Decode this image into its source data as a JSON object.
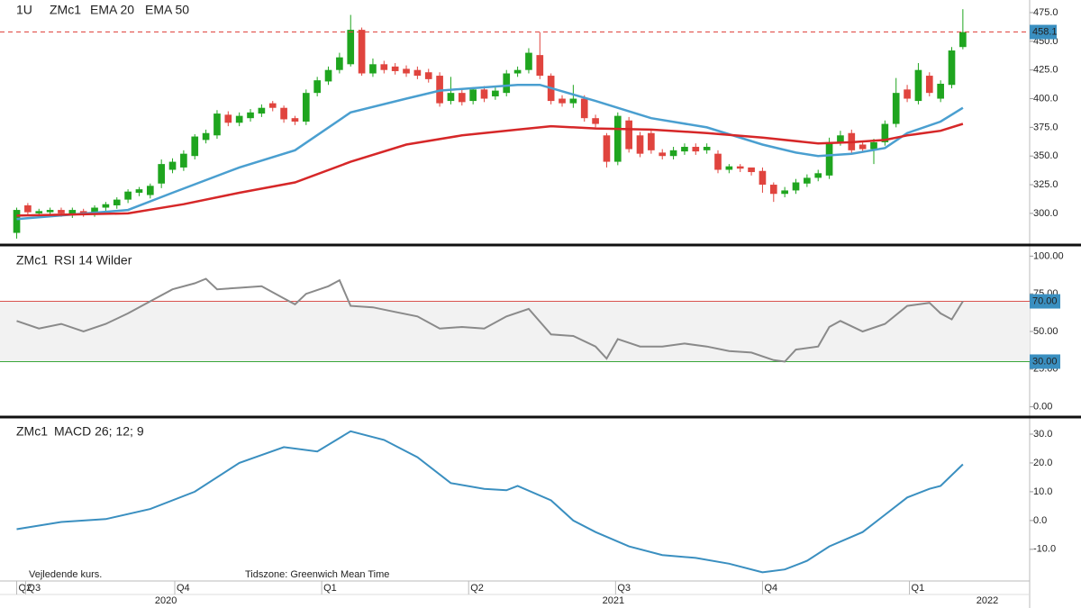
{
  "chart_data": [
    {
      "type": "candlestick",
      "interval": "1U",
      "title": "ZMc1",
      "up_color": "#1fa51f",
      "down_color": "#e0443e",
      "xlim": [
        -1.5,
        91
      ],
      "ylim": [
        274,
        486
      ],
      "yticks": [
        {
          "value": 300,
          "label": "300.0"
        },
        {
          "value": 325,
          "label": "325.0"
        },
        {
          "value": 350,
          "label": "350.0"
        },
        {
          "value": 375,
          "label": "375.0"
        },
        {
          "value": 400,
          "label": "400.0"
        },
        {
          "value": 425,
          "label": "425.0"
        },
        {
          "value": 450,
          "label": "450.0"
        },
        {
          "value": 475,
          "label": "475.0"
        }
      ],
      "open": [
        283,
        307,
        300,
        301,
        303,
        299,
        302,
        300,
        305,
        307,
        312,
        318,
        316,
        326,
        338,
        340,
        350,
        364,
        368,
        386,
        379,
        383,
        387,
        396,
        392,
        383,
        380,
        405,
        415,
        425,
        430,
        460,
        422,
        430,
        428,
        426,
        425,
        423,
        420,
        398,
        405,
        398,
        408,
        402,
        405,
        422,
        425,
        438,
        420,
        400,
        396,
        400,
        383,
        368,
        345,
        381,
        368,
        370,
        353,
        350,
        354,
        358,
        355,
        352,
        338,
        341,
        340,
        337,
        325,
        317,
        320,
        326,
        331,
        333,
        362,
        370,
        360,
        356,
        362,
        378,
        408,
        398,
        420,
        400,
        412,
        445
      ],
      "close": [
        303,
        301,
        302,
        303,
        300,
        303,
        300,
        305,
        308,
        312,
        319,
        321,
        324,
        343,
        345,
        352,
        367,
        370,
        387,
        379,
        385,
        388,
        392,
        392,
        382,
        380,
        405,
        416,
        425,
        436,
        460,
        422,
        430,
        425,
        424,
        422,
        420,
        417,
        396,
        405,
        397,
        408,
        400,
        407,
        422,
        425,
        440,
        420,
        398,
        396,
        400,
        383,
        378,
        345,
        385,
        356,
        352,
        355,
        350,
        355,
        358,
        354,
        358,
        338,
        341,
        339,
        336,
        325,
        317,
        320,
        327,
        331,
        335,
        362,
        368,
        355,
        356,
        362,
        378,
        405,
        400,
        425,
        405,
        413,
        442,
        458
      ],
      "high": [
        305,
        309,
        304,
        305,
        305,
        305,
        304,
        307,
        310,
        314,
        321,
        323,
        326,
        347,
        348,
        355,
        369,
        373,
        390,
        389,
        388,
        391,
        395,
        398,
        394,
        385,
        408,
        419,
        428,
        440,
        473,
        462,
        435,
        433,
        431,
        429,
        428,
        426,
        423,
        419,
        408,
        410,
        411,
        410,
        425,
        428,
        444,
        458,
        422,
        403,
        412,
        403,
        386,
        370,
        388,
        384,
        371,
        373,
        356,
        358,
        361,
        361,
        361,
        355,
        343,
        343,
        339,
        340,
        327,
        323,
        330,
        334,
        338,
        366,
        372,
        373,
        363,
        365,
        381,
        418,
        412,
        431,
        423,
        416,
        445,
        478
      ],
      "low": [
        278,
        298,
        297,
        298,
        297,
        296,
        297,
        297,
        302,
        304,
        309,
        315,
        313,
        322,
        335,
        337,
        347,
        361,
        365,
        376,
        376,
        380,
        384,
        389,
        379,
        377,
        377,
        402,
        412,
        422,
        428,
        420,
        419,
        422,
        421,
        419,
        417,
        414,
        393,
        395,
        394,
        395,
        397,
        399,
        402,
        419,
        422,
        417,
        395,
        393,
        392,
        380,
        375,
        340,
        342,
        353,
        349,
        352,
        347,
        347,
        351,
        351,
        352,
        335,
        335,
        336,
        333,
        318,
        310,
        314,
        317,
        323,
        328,
        330,
        359,
        352,
        353,
        343,
        359,
        375,
        397,
        395,
        402,
        397,
        409,
        443
      ],
      "last_price": 458.1,
      "last_price_color": "#e0443e",
      "series": [
        {
          "name": "EMA 20",
          "color": "#4a9fd0",
          "x": [
            0,
            10,
            14,
            20,
            25,
            30,
            35,
            38,
            45,
            47,
            52,
            57,
            62,
            67,
            70,
            72,
            75,
            78,
            80,
            83,
            85
          ],
          "values": [
            295,
            303,
            318,
            340,
            355,
            388,
            400,
            407,
            412,
            412,
            398,
            383,
            375,
            360,
            353,
            350,
            352,
            357,
            370,
            380,
            392
          ]
        },
        {
          "name": "EMA 50",
          "color": "#d62728",
          "x": [
            0,
            10,
            15,
            20,
            25,
            30,
            35,
            40,
            45,
            48,
            52,
            57,
            62,
            67,
            72,
            75,
            78,
            80,
            83,
            85
          ],
          "values": [
            298,
            300,
            308,
            318,
            327,
            345,
            360,
            368,
            373,
            376,
            374,
            373,
            370,
            366,
            361,
            362,
            364,
            368,
            372,
            378
          ]
        }
      ]
    },
    {
      "type": "line",
      "title": "ZMc1",
      "xlim": [
        -1.5,
        91
      ],
      "ylim": [
        -5,
        105
      ],
      "yticks": [
        {
          "value": 0,
          "label": "0.00"
        },
        {
          "value": 25,
          "label": "25.00"
        },
        {
          "value": 50,
          "label": "50.00"
        },
        {
          "value": 75,
          "label": "75.00"
        },
        {
          "value": 100,
          "label": "100.00"
        }
      ],
      "levels": [
        {
          "value": 70,
          "label": "70.00",
          "color": "#d9534f"
        },
        {
          "value": 30,
          "label": "30.00",
          "color": "#3aa63a"
        }
      ],
      "series": [
        {
          "name": "RSI 14 Wilder",
          "color": "#8a8a8a",
          "x": [
            0,
            2,
            4,
            6,
            8,
            10,
            12,
            14,
            16,
            17,
            18,
            20,
            22,
            24,
            25,
            26,
            28,
            29,
            30,
            32,
            34,
            36,
            38,
            40,
            42,
            44,
            46,
            48,
            50,
            52,
            53,
            54,
            56,
            58,
            60,
            62,
            64,
            66,
            68,
            69,
            70,
            72,
            73,
            74,
            76,
            78,
            80,
            82,
            83,
            84,
            85
          ],
          "values": [
            57,
            52,
            55,
            50,
            55,
            62,
            70,
            78,
            82,
            85,
            78,
            79,
            80,
            72,
            68,
            75,
            80,
            84,
            67,
            66,
            63,
            60,
            52,
            53,
            52,
            60,
            65,
            48,
            47,
            40,
            32,
            45,
            40,
            40,
            42,
            40,
            37,
            36,
            31,
            30,
            38,
            40,
            53,
            57,
            50,
            55,
            67,
            69,
            62,
            58,
            70
          ]
        }
      ]
    },
    {
      "type": "line",
      "title": "ZMc1",
      "xlim": [
        -1.5,
        91
      ],
      "ylim": [
        -21,
        35
      ],
      "yticks": [
        {
          "value": -10,
          "label": "-10.0"
        },
        {
          "value": 0,
          "label": "0.0"
        },
        {
          "value": 10,
          "label": "10.0"
        },
        {
          "value": 20,
          "label": "20.0"
        },
        {
          "value": 30,
          "label": "30.0"
        }
      ],
      "xticks": [
        {
          "value": 0,
          "label": "Q2"
        },
        {
          "value": 0.8,
          "label": "Q3"
        },
        {
          "value": 14.2,
          "label": "Q4"
        },
        {
          "value": 27.4,
          "label": "Q1"
        },
        {
          "value": 40.6,
          "label": "Q2"
        },
        {
          "value": 53.8,
          "label": "Q3"
        },
        {
          "value": 67,
          "label": "Q4"
        },
        {
          "value": 80.2,
          "label": "Q1"
        }
      ],
      "year_ticks": [
        {
          "value": 13.4,
          "label": "2020"
        },
        {
          "value": 53.6,
          "label": "2021"
        },
        {
          "value": 87.2,
          "label": "2022"
        }
      ],
      "series": [
        {
          "name": "MACD 26; 12; 9",
          "color": "#3a8fc0",
          "x": [
            0,
            4,
            8,
            12,
            16,
            20,
            24,
            27,
            30,
            33,
            36,
            39,
            42,
            44,
            45,
            48,
            50,
            52,
            55,
            58,
            61,
            64,
            67,
            69,
            71,
            73,
            76,
            78,
            80,
            82,
            83,
            85
          ],
          "values": [
            -3,
            -0.5,
            0.5,
            4,
            10,
            20,
            25.5,
            24,
            31,
            28,
            22,
            13,
            11,
            10.5,
            12,
            7,
            0,
            -4,
            -9,
            -12,
            -13,
            -15,
            -18,
            -17,
            -14,
            -9,
            -4,
            2,
            8,
            11,
            12,
            19.5
          ]
        }
      ]
    }
  ],
  "footer": [
    "Vejledende kurs.",
    "Tidszone: Greenwich Mean Time"
  ]
}
